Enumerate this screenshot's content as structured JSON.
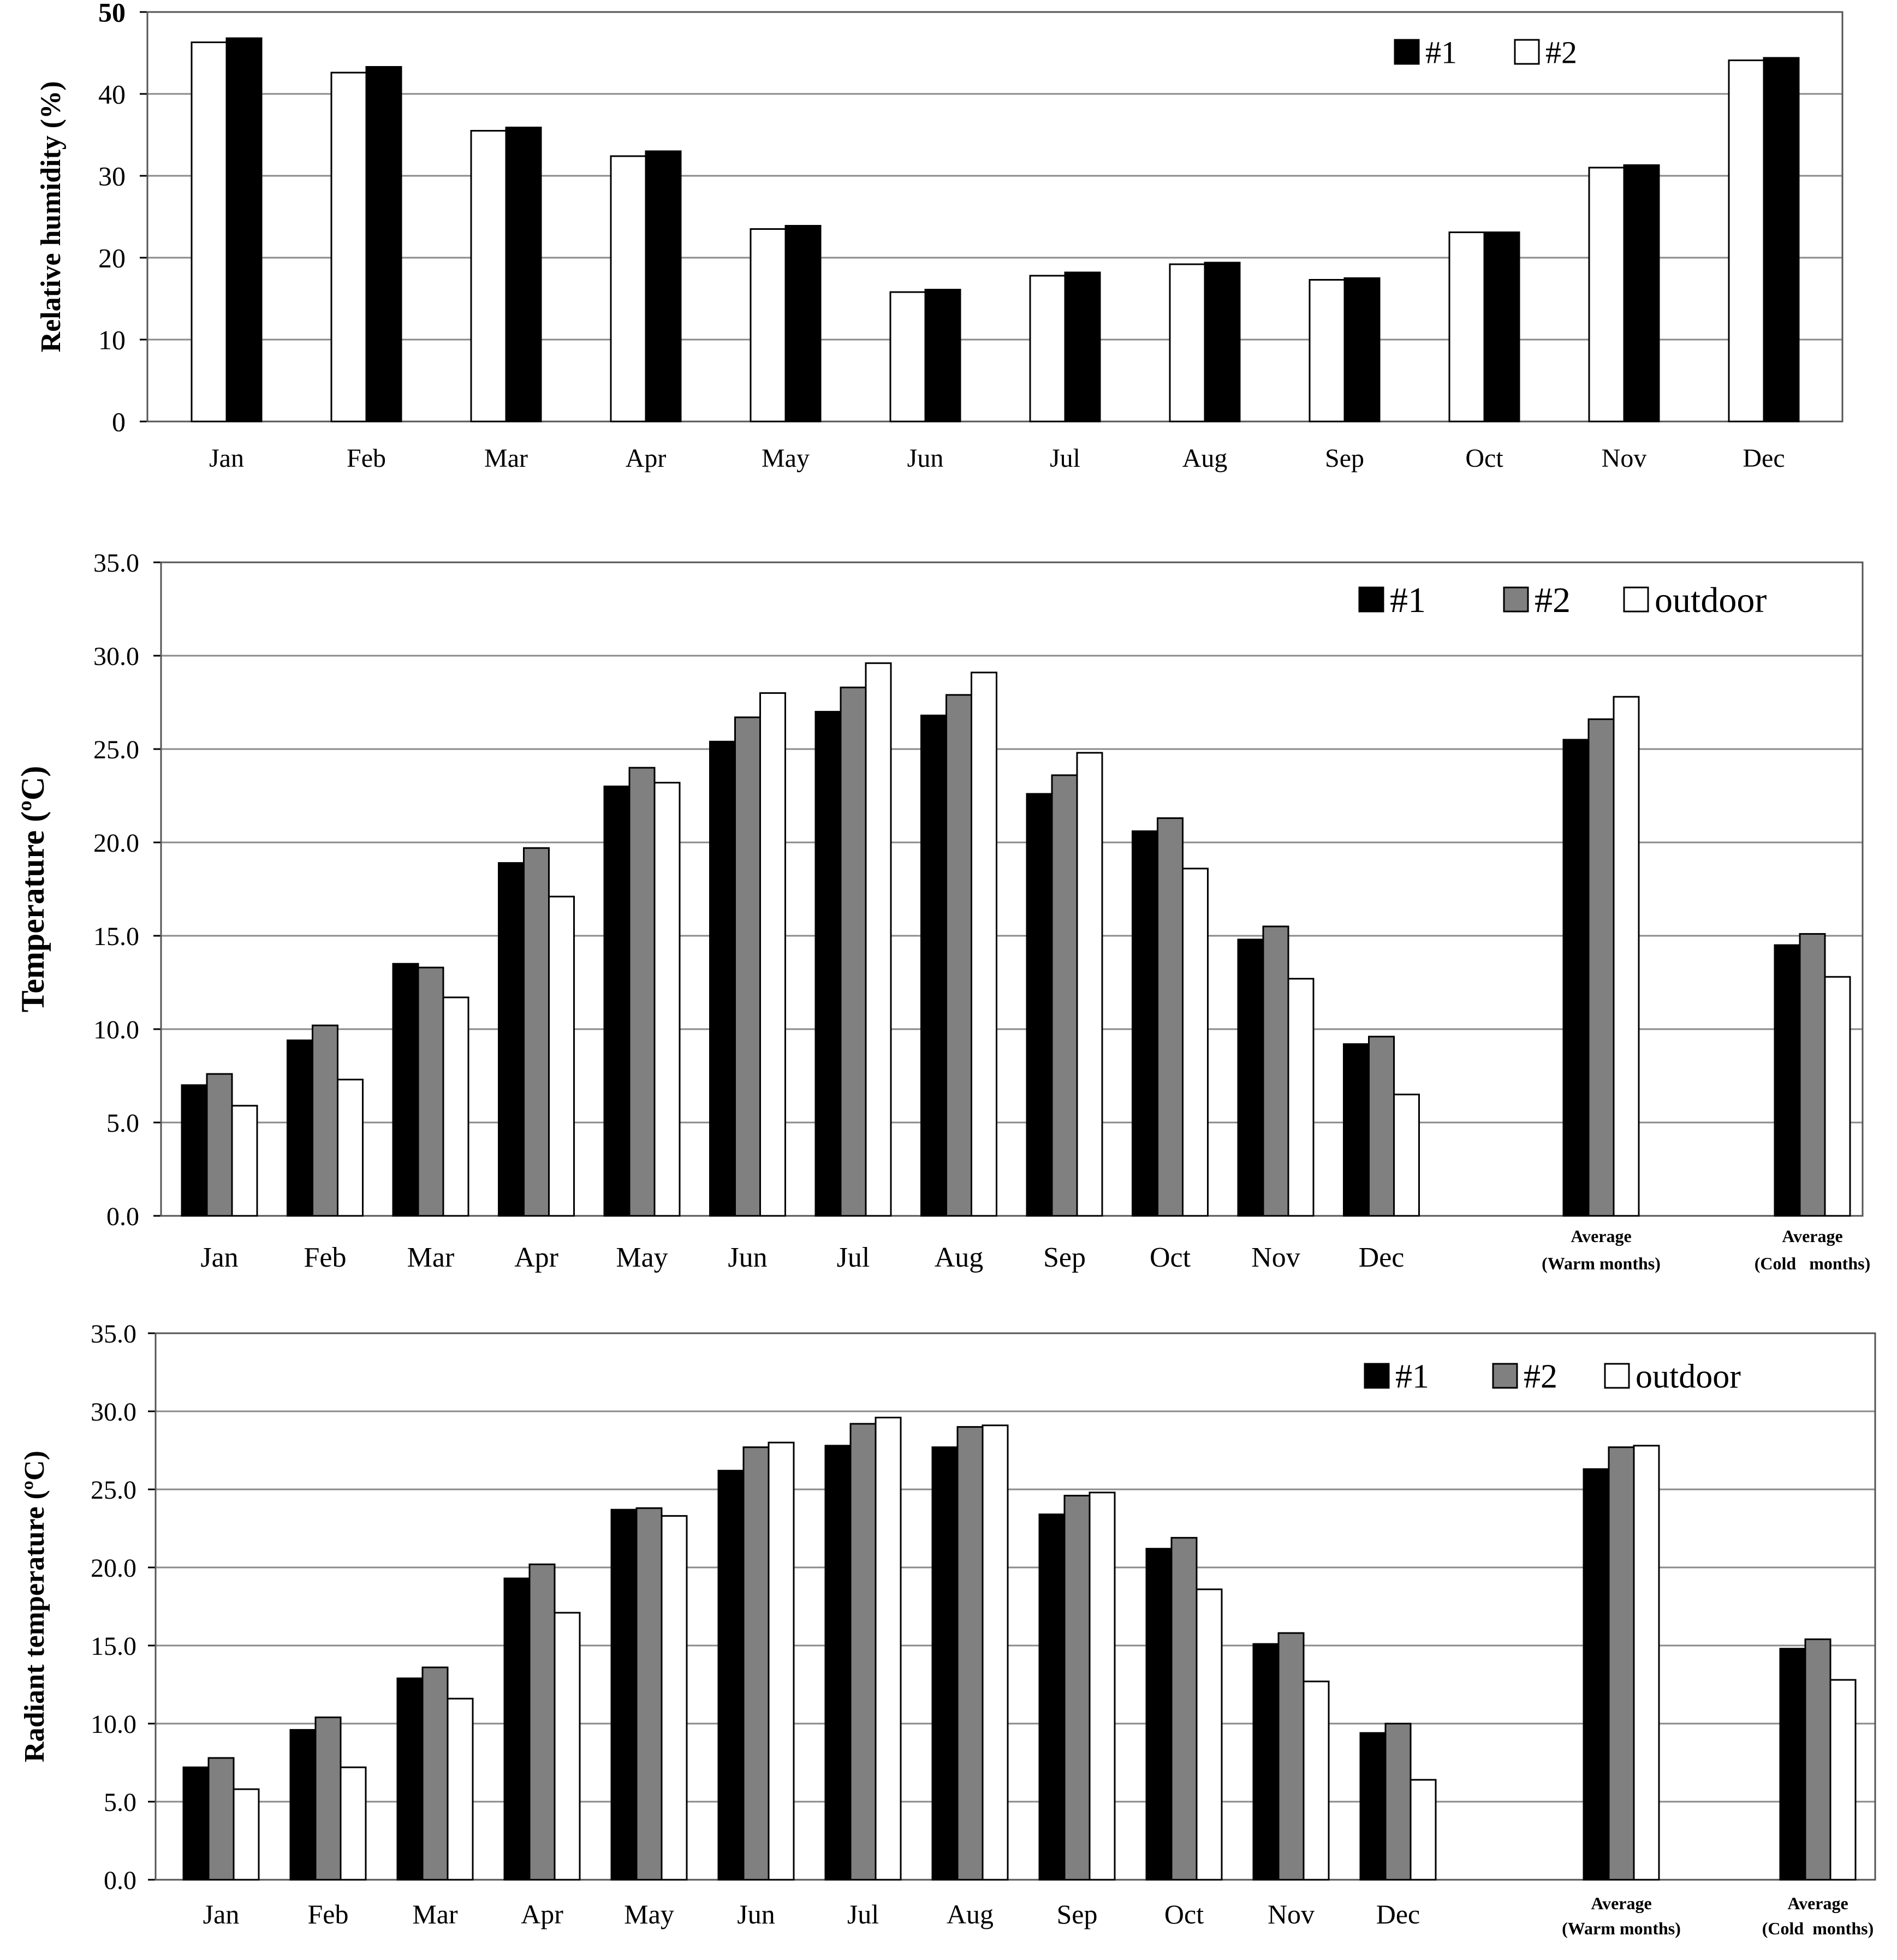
{
  "chart_data": [
    {
      "type": "bar",
      "title": "",
      "xlabel": "",
      "ylabel": "Relative humidity (%)",
      "ylim": [
        0,
        50
      ],
      "yticks": [
        "0",
        "10",
        "20",
        "30",
        "40",
        "50"
      ],
      "grid": true,
      "legend_position": "top-right",
      "categories": [
        "Jan",
        "Feb",
        "Mar",
        "Apr",
        "May",
        "Jun",
        "Jul",
        "Aug",
        "Sep",
        "Oct",
        "Nov",
        "Dec"
      ],
      "series": [
        {
          "name": "#2",
          "color": "#ffffff",
          "values": [
            46.3,
            42.6,
            35.5,
            32.4,
            23.5,
            15.8,
            17.8,
            19.2,
            17.3,
            23.1,
            31.0,
            44.1
          ]
        },
        {
          "name": "#1",
          "color": "#000000",
          "values": [
            46.8,
            43.3,
            35.9,
            33.0,
            23.9,
            16.1,
            18.2,
            19.4,
            17.5,
            23.1,
            31.3,
            44.4
          ]
        }
      ],
      "legend": [
        {
          "name": "#1",
          "color": "#000000"
        },
        {
          "name": "#2",
          "color": "#ffffff"
        }
      ]
    },
    {
      "type": "bar",
      "title": "",
      "xlabel": "",
      "ylabel": "Temperature (ºC)",
      "ylim": [
        0,
        35
      ],
      "yticks": [
        "0.0",
        "5.0",
        "10.0",
        "15.0",
        "20.0",
        "25.0",
        "30.0",
        "35.0"
      ],
      "grid": true,
      "legend_position": "top-right",
      "categories": [
        "Jan",
        "Feb",
        "Mar",
        "Apr",
        "May",
        "Jun",
        "Jul",
        "Aug",
        "Sep",
        "Oct",
        "Nov",
        "Dec"
      ],
      "average_categories": [
        {
          "line1": "Average",
          "line2": "(Warm months)"
        },
        {
          "line1": "Average",
          "line2": "(Cold   months)"
        }
      ],
      "series": [
        {
          "name": "#1",
          "color": "#000000",
          "values": [
            7.0,
            9.4,
            13.5,
            18.9,
            23.0,
            25.4,
            27.0,
            26.8,
            22.6,
            20.6,
            14.8,
            9.2
          ],
          "averages": [
            25.5,
            14.5
          ]
        },
        {
          "name": "#2",
          "color": "#808080",
          "values": [
            7.6,
            10.2,
            13.3,
            19.7,
            24.0,
            26.7,
            28.3,
            27.9,
            23.6,
            21.3,
            15.5,
            9.6
          ],
          "averages": [
            26.6,
            15.1
          ]
        },
        {
          "name": "outdoor",
          "color": "#ffffff",
          "values": [
            5.9,
            7.3,
            11.7,
            17.1,
            23.2,
            28.0,
            29.6,
            29.1,
            24.8,
            18.6,
            12.7,
            6.5
          ],
          "averages": [
            27.8,
            12.8
          ]
        }
      ]
    },
    {
      "type": "bar",
      "title": "",
      "xlabel": "",
      "ylabel": "Radiant temperature (ºC)",
      "ylim": [
        0,
        35
      ],
      "yticks": [
        "0.0",
        "5.0",
        "10.0",
        "15.0",
        "20.0",
        "25.0",
        "30.0",
        "35.0"
      ],
      "grid": true,
      "legend_position": "top-right",
      "categories": [
        "Jan",
        "Feb",
        "Mar",
        "Apr",
        "May",
        "Jun",
        "Jul",
        "Aug",
        "Sep",
        "Oct",
        "Nov",
        "Dec"
      ],
      "average_categories": [
        {
          "line1": "Average",
          "line2": "(Warm months)"
        },
        {
          "line1": "Average",
          "line2": "(Cold  months)"
        }
      ],
      "series": [
        {
          "name": "#1",
          "color": "#000000",
          "values": [
            7.2,
            9.6,
            12.9,
            19.3,
            23.7,
            26.2,
            27.8,
            27.7,
            23.4,
            21.2,
            15.1,
            9.4
          ],
          "averages": [
            26.3,
            14.8
          ]
        },
        {
          "name": "#2",
          "color": "#808080",
          "values": [
            7.8,
            10.4,
            13.6,
            20.2,
            23.8,
            27.7,
            29.2,
            29.0,
            24.6,
            21.9,
            15.8,
            10.0
          ],
          "averages": [
            27.7,
            15.4
          ]
        },
        {
          "name": "outdoor",
          "color": "#ffffff",
          "values": [
            5.8,
            7.2,
            11.6,
            17.1,
            23.3,
            28.0,
            29.6,
            29.1,
            24.8,
            18.6,
            12.7,
            6.4
          ],
          "averages": [
            27.8,
            12.8
          ]
        }
      ]
    }
  ]
}
